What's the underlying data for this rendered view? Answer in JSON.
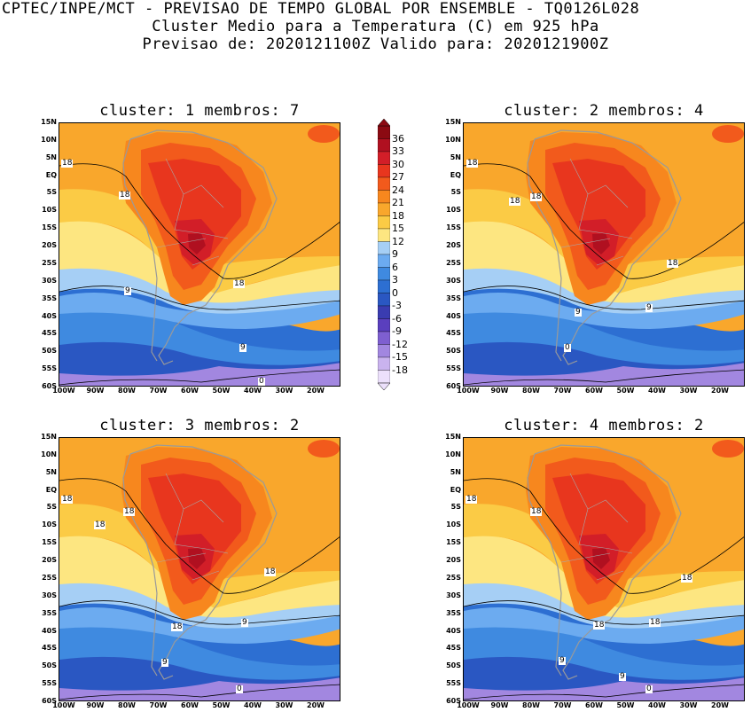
{
  "header": {
    "line1": "CPTEC/INPE/MCT - PREVISAO DE TEMPO GLOBAL POR ENSEMBLE - TQ0126L028",
    "line2": "Cluster Medio para a Temperatura (C) em 925 hPa",
    "line3": "Previsao de: 2020121100Z   Valido para: 2020121900Z"
  },
  "axes": {
    "lat_labels": [
      "15N",
      "10N",
      "5N",
      "EQ",
      "5S",
      "10S",
      "15S",
      "20S",
      "25S",
      "30S",
      "35S",
      "40S",
      "45S",
      "50S",
      "55S",
      "60S"
    ],
    "lon_labels": [
      "100W",
      "90W",
      "80W",
      "70W",
      "60W",
      "50W",
      "40W",
      "30W",
      "20W"
    ]
  },
  "colorbar": {
    "labels": [
      "36",
      "33",
      "30",
      "27",
      "24",
      "21",
      "18",
      "15",
      "12",
      "9",
      "6",
      "3",
      "0",
      "-3",
      "-6",
      "-9",
      "-12",
      "-15",
      "-18"
    ],
    "colors": [
      "#8b0a12",
      "#b01020",
      "#d21e28",
      "#e8361e",
      "#f25a1c",
      "#f7871e",
      "#f9a72c",
      "#fbcb45",
      "#fde681",
      "#a6cff5",
      "#6cabf0",
      "#3f8ae0",
      "#2d6fd2",
      "#2a57c2",
      "#3a3cb0",
      "#5a3fbe",
      "#7e5fd0",
      "#a287e0",
      "#c9b3ee",
      "#ece0fb"
    ]
  },
  "panels": [
    {
      "title": "cluster: 1   membros: 7",
      "contour_labels": [
        "18",
        "18",
        "18",
        "9",
        "9",
        "0"
      ]
    },
    {
      "title": "cluster: 2   membros: 4",
      "contour_labels": [
        "18",
        "18",
        "18",
        "18",
        "9",
        "9",
        "0"
      ]
    },
    {
      "title": "cluster: 3   membros: 2",
      "contour_labels": [
        "18",
        "18",
        "18",
        "18",
        "18",
        "9",
        "9",
        "0"
      ]
    },
    {
      "title": "cluster: 4   membros: 2",
      "contour_labels": [
        "18",
        "18",
        "18",
        "18",
        "18",
        "9",
        "9",
        "0"
      ]
    }
  ]
}
